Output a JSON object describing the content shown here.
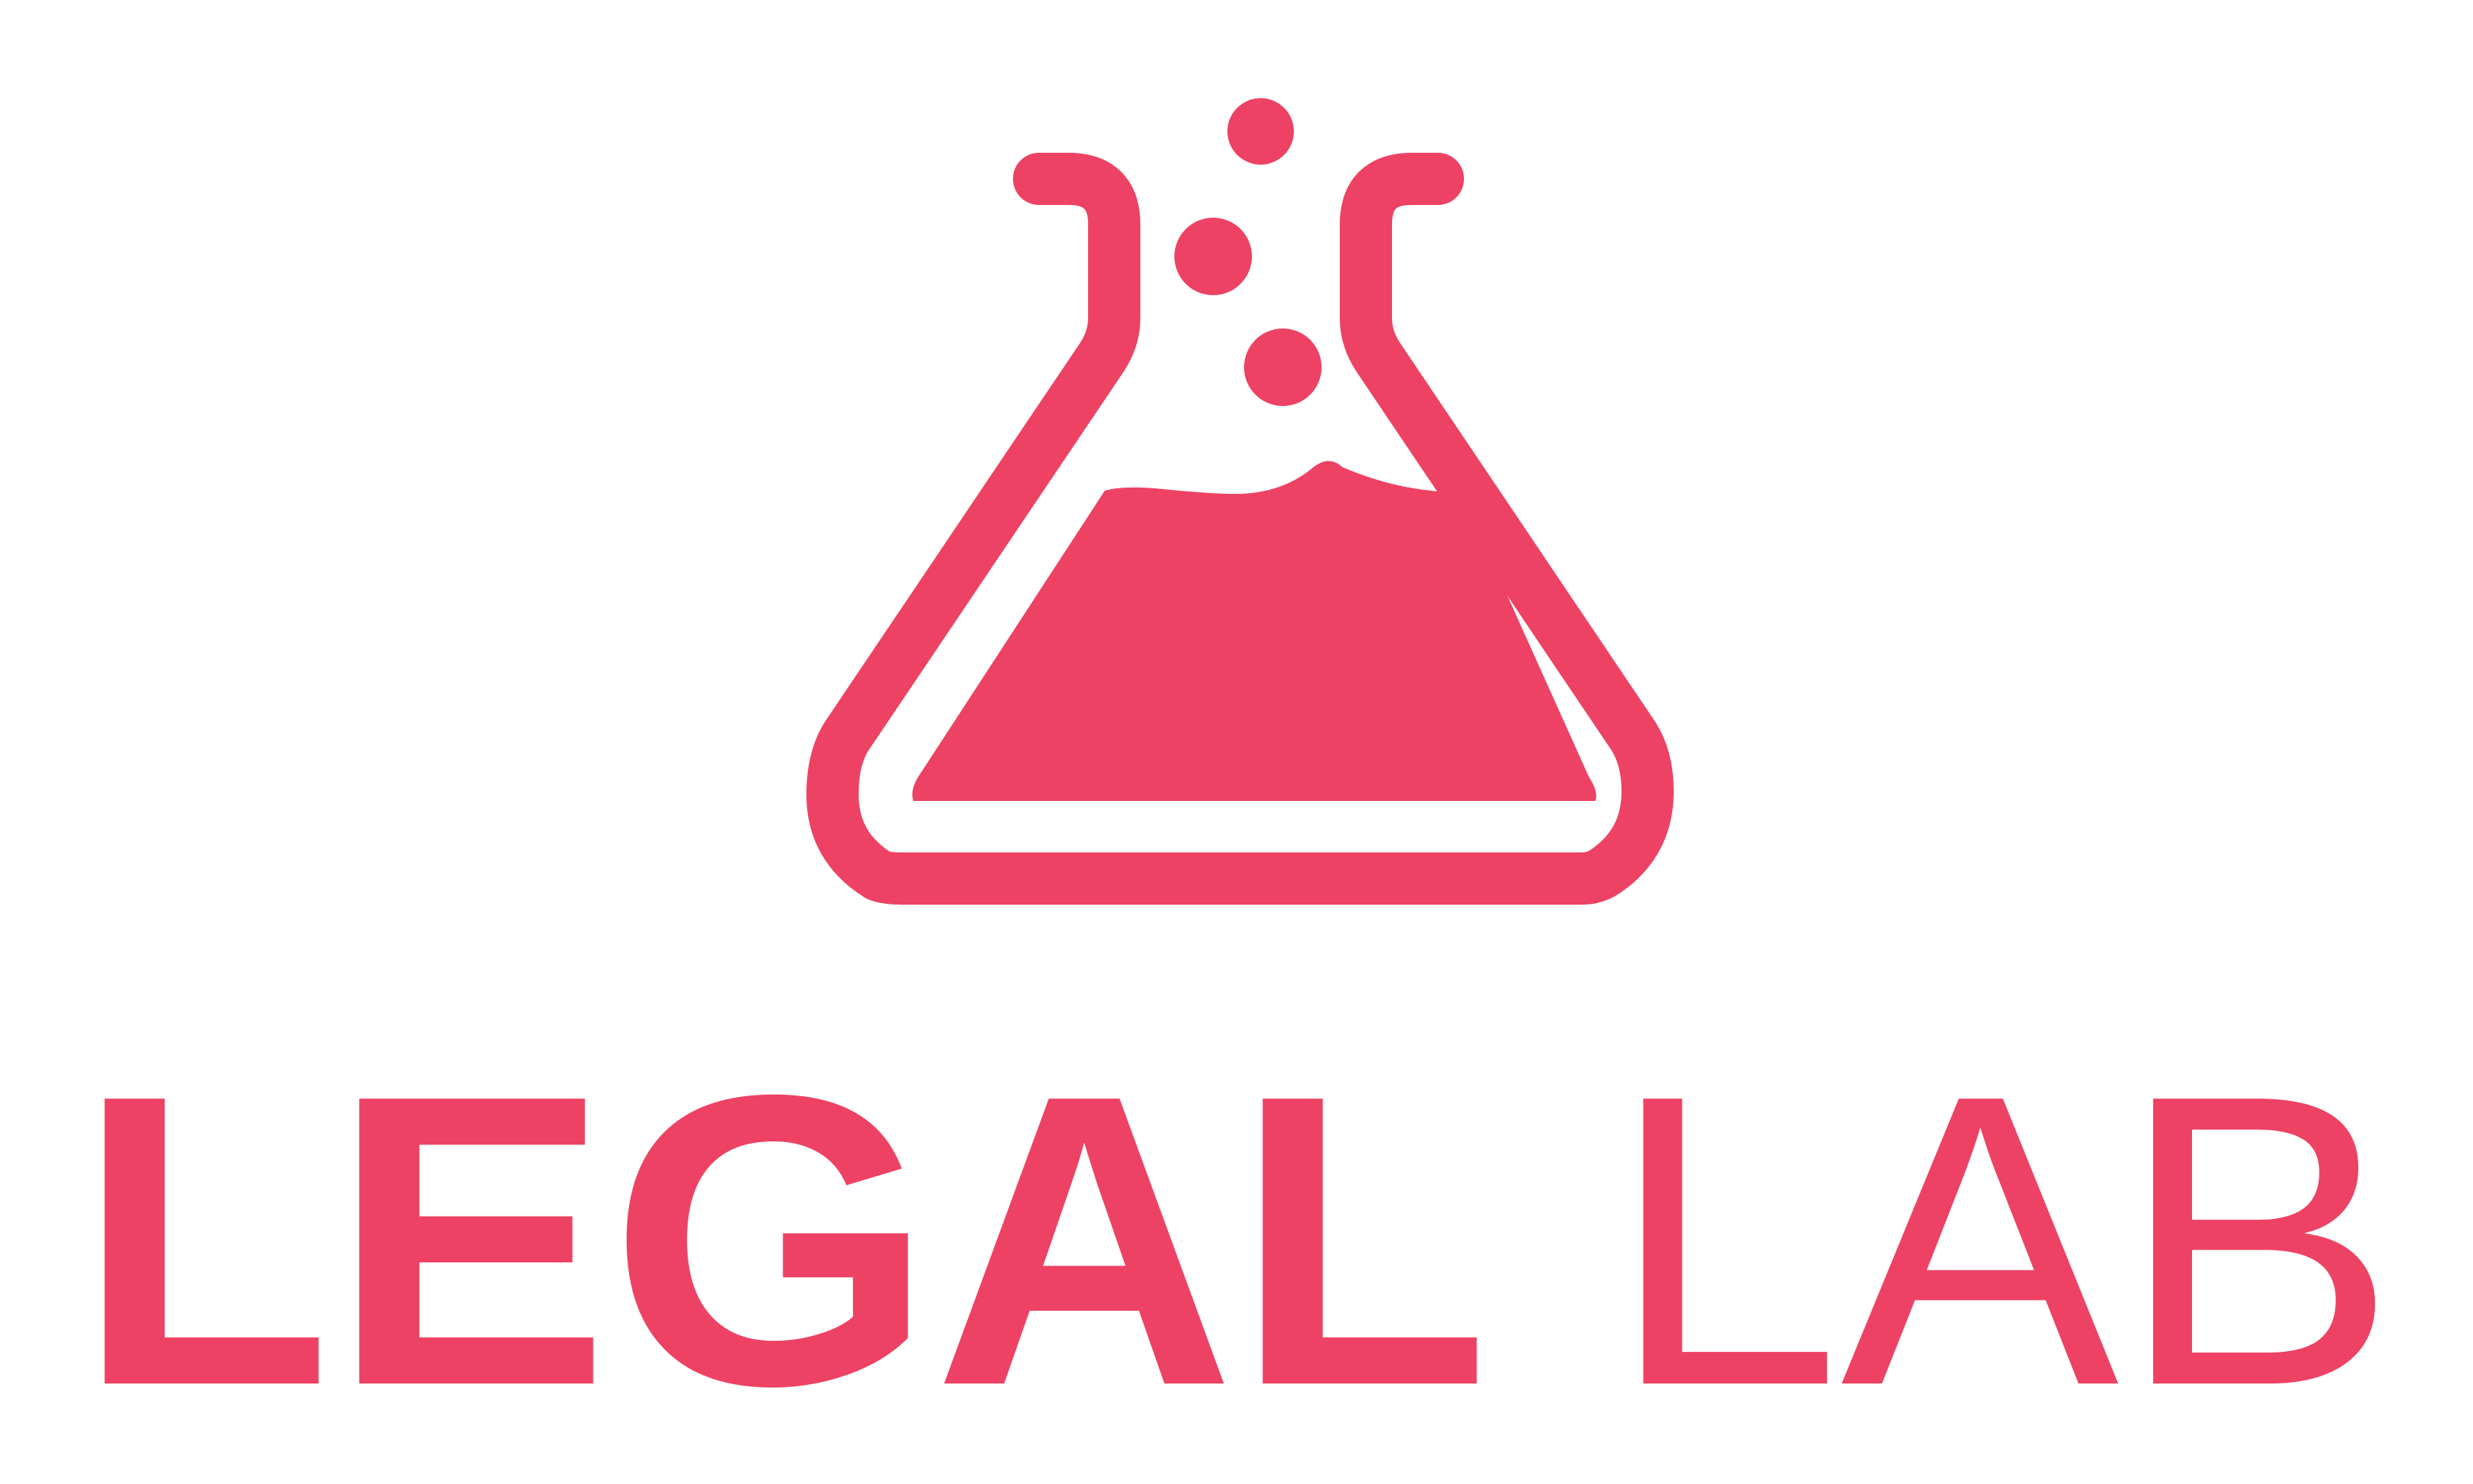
{
  "brand": {
    "color": "#ED4264",
    "background": "#FFFFFF",
    "icon": "flask-icon",
    "wordmark_bold": "LEGAL",
    "wordmark_light": "LAB"
  }
}
